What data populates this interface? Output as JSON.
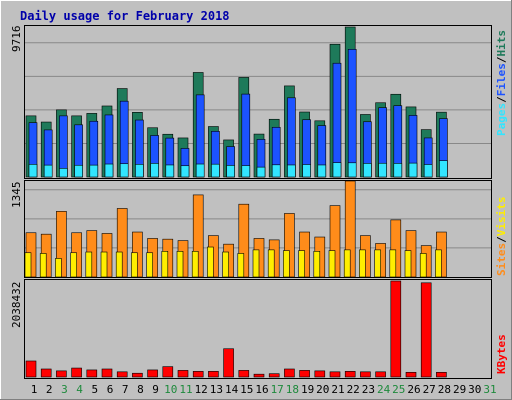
{
  "chart_data": {
    "type": "bar",
    "title": "Daily usage for February 2018",
    "categories": [
      "1",
      "2",
      "3",
      "4",
      "5",
      "6",
      "7",
      "8",
      "9",
      "10",
      "11",
      "12",
      "13",
      "14",
      "15",
      "16",
      "17",
      "18",
      "19",
      "20",
      "21",
      "22",
      "23",
      "24",
      "25",
      "26",
      "27",
      "28",
      "29",
      "30",
      "31"
    ],
    "weekend_days": [
      "3",
      "4",
      "10",
      "11",
      "17",
      "18",
      "24",
      "25",
      "31"
    ],
    "panels": [
      {
        "name": "hits-files-pages",
        "ymax_label": "9716",
        "ymax": 9716,
        "legend": [
          "Pages",
          "/",
          "Files",
          "/",
          "Hits"
        ],
        "series": [
          {
            "name": "Hits",
            "color": "#1e7a5a",
            "values": [
              3960,
              3560,
              4350,
              3960,
              4120,
              4600,
              5730,
              4190,
              3190,
              2770,
              2530,
              6770,
              3270,
              2400,
              6450,
              2780,
              3740,
              5900,
              4210,
              3640,
              8600,
              9716,
              4050,
              4810,
              5360,
              4540,
              3070,
              4200,
              0,
              0,
              0
            ]
          },
          {
            "name": "Files",
            "color": "#1c53ff",
            "values": [
              3520,
              3050,
              3960,
              3380,
              3610,
              4020,
              4910,
              3690,
              2690,
              2520,
              1850,
              5320,
              2960,
              1970,
              5370,
              2440,
              3220,
              5130,
              3710,
              3330,
              7370,
              8270,
              3580,
              4490,
              4620,
              3990,
              2530,
              3780,
              0,
              0,
              0
            ]
          },
          {
            "name": "Pages",
            "color": "#32e5ff",
            "values": [
              820,
              770,
              560,
              760,
              770,
              840,
              860,
              820,
              880,
              780,
              730,
              840,
              830,
              750,
              740,
              640,
              790,
              780,
              810,
              780,
              930,
              920,
              880,
              890,
              880,
              900,
              810,
              1060,
              0,
              0,
              0
            ]
          }
        ]
      },
      {
        "name": "sites-visits",
        "ymax_label": "1345",
        "ymax": 1345,
        "legend": [
          "Sites",
          "/",
          "Visits"
        ],
        "series": [
          {
            "name": "Visits",
            "color": "#ff8c1a",
            "values": [
              620,
              600,
              920,
              620,
              650,
              610,
              960,
              630,
              540,
              530,
              510,
              1150,
              580,
              460,
              1020,
              540,
              520,
              890,
              630,
              560,
              1000,
              1345,
              580,
              470,
              800,
              650,
              440,
              630,
              0,
              0,
              0
            ]
          },
          {
            "name": "Sites",
            "color": "#ffee00",
            "values": [
              340,
              330,
              260,
              340,
              350,
              350,
              350,
              340,
              340,
              360,
              360,
              360,
              420,
              350,
              330,
              380,
              380,
              370,
              370,
              360,
              370,
              380,
              380,
              380,
              380,
              370,
              330,
              380,
              0,
              0,
              0
            ]
          }
        ]
      },
      {
        "name": "kbytes",
        "ymax_label": "2038432",
        "ymax": 2038432,
        "legend": [
          "KBytes"
        ],
        "series": [
          {
            "name": "KBytes",
            "color": "#ff0000",
            "values": [
              340000,
              170000,
              130000,
              190000,
              150000,
              170000,
              110000,
              80000,
              150000,
              220000,
              140000,
              120000,
              120000,
              600000,
              140000,
              60000,
              70000,
              170000,
              140000,
              130000,
              110000,
              120000,
              110000,
              110000,
              2038432,
              100000,
              2000000,
              100000,
              0,
              0,
              0
            ]
          }
        ]
      }
    ]
  }
}
